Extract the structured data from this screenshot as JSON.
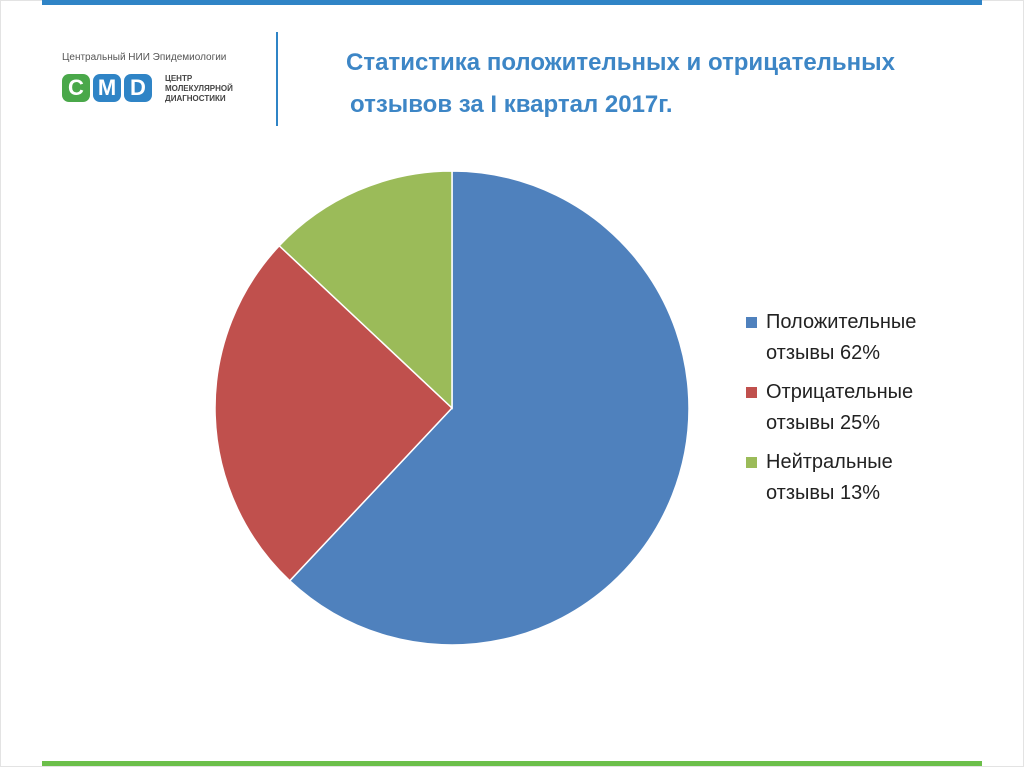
{
  "logo": {
    "top_text": "Центральный НИИ Эпидемиологии",
    "letters": [
      "C",
      "M",
      "D"
    ],
    "letter_colors": [
      "#4aa84a",
      "#2f84c6",
      "#2f84c6"
    ],
    "sub_lines": [
      "ЦЕНТР",
      "МОЛЕКУЛЯРНОЙ",
      "ДИАГНОСТИКИ"
    ]
  },
  "title": {
    "line1": "Статистика положительных и отрицательных",
    "line2": "отзывов за I квартал 2017г."
  },
  "chart_data": {
    "type": "pie",
    "title": "Статистика положительных и отрицательных отзывов за I квартал 2017г.",
    "legend_position": "right",
    "slices": [
      {
        "line1": "Положительные",
        "line2": "отзывы  62%",
        "value": 62,
        "color": "#4f81bd"
      },
      {
        "line1": "Отрицательные",
        "line2": "отзывы 25%",
        "value": 25,
        "color": "#c0504d"
      },
      {
        "line1": "Нейтральные",
        "line2": "отзывы  13%",
        "value": 13,
        "color": "#9bbb59"
      }
    ]
  }
}
